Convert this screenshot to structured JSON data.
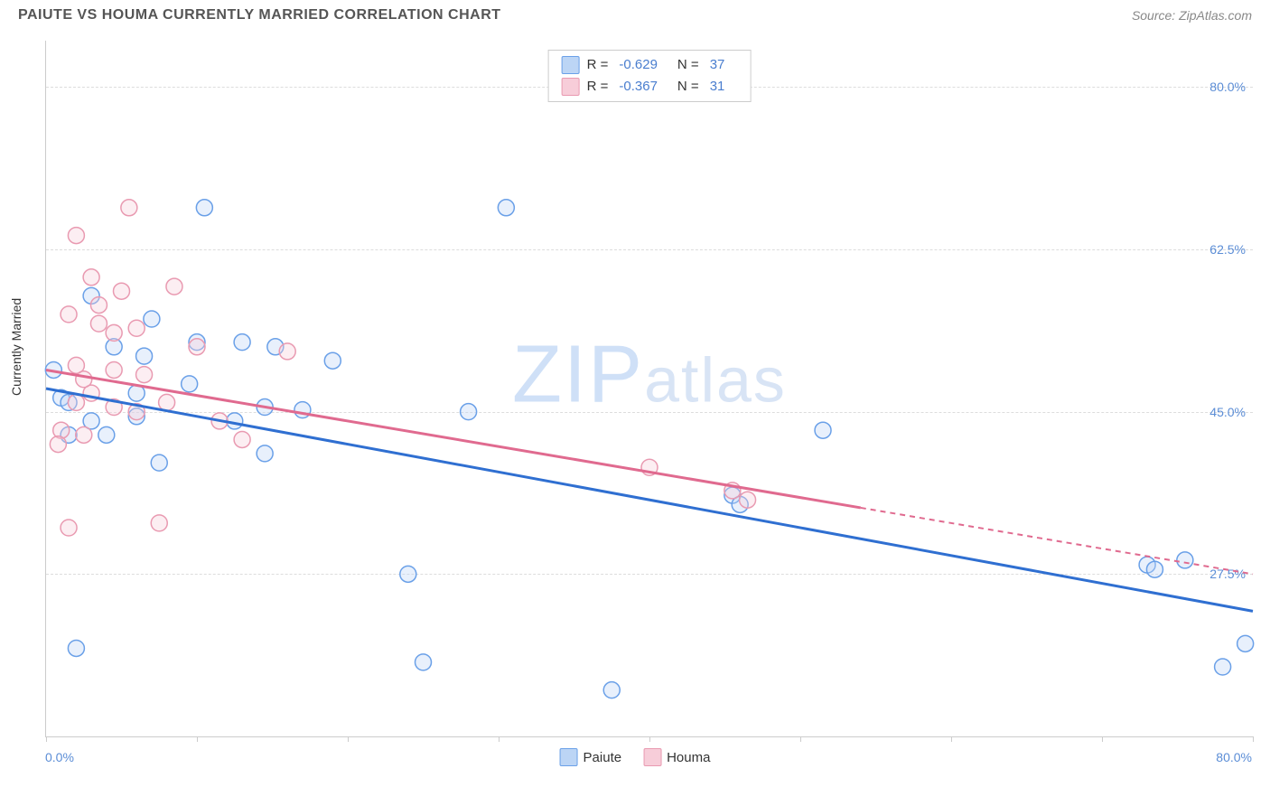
{
  "title": "PAIUTE VS HOUMA CURRENTLY MARRIED CORRELATION CHART",
  "source": "Source: ZipAtlas.com",
  "y_axis_title": "Currently Married",
  "watermark_zip": "ZIP",
  "watermark_atlas": "atlas",
  "chart": {
    "type": "scatter",
    "xlim": [
      0,
      80
    ],
    "ylim": [
      10,
      85
    ],
    "x_tick_positions": [
      0,
      10,
      20,
      30,
      40,
      50,
      60,
      70,
      80
    ],
    "x_label_min": "0.0%",
    "x_label_max": "80.0%",
    "y_ticks": [
      {
        "v": 27.5,
        "label": "27.5%"
      },
      {
        "v": 45.0,
        "label": "45.0%"
      },
      {
        "v": 62.5,
        "label": "62.5%"
      },
      {
        "v": 80.0,
        "label": "80.0%"
      }
    ],
    "background_color": "#ffffff",
    "grid_color": "#dddddd",
    "marker_radius": 9,
    "marker_fill_opacity": 0.35,
    "marker_stroke_width": 1.5,
    "trend_line_width": 3,
    "series": [
      {
        "name": "Paiute",
        "color_stroke": "#6aa0e8",
        "color_fill": "#bcd5f5",
        "trend_color": "#2f6fd1",
        "trend": {
          "x1": 0,
          "y1": 47.5,
          "x2": 80,
          "y2": 23.5,
          "solid_until_x": 80
        },
        "points": [
          [
            10.5,
            67.0
          ],
          [
            30.5,
            67.0
          ],
          [
            3.0,
            57.5
          ],
          [
            6.5,
            51.0
          ],
          [
            0.5,
            49.5
          ],
          [
            1.0,
            46.5
          ],
          [
            1.5,
            46.0
          ],
          [
            10.0,
            52.5
          ],
          [
            6.0,
            44.5
          ],
          [
            3.0,
            44.0
          ],
          [
            4.0,
            42.5
          ],
          [
            7.5,
            39.5
          ],
          [
            12.5,
            44.0
          ],
          [
            14.5,
            40.5
          ],
          [
            14.5,
            45.5
          ],
          [
            15.2,
            52.0
          ],
          [
            13.0,
            52.5
          ],
          [
            19.0,
            50.5
          ],
          [
            17.0,
            45.2
          ],
          [
            9.5,
            48.0
          ],
          [
            1.5,
            42.5
          ],
          [
            2.0,
            19.5
          ],
          [
            24.0,
            27.5
          ],
          [
            25.0,
            18.0
          ],
          [
            37.5,
            15.0
          ],
          [
            45.5,
            36.0
          ],
          [
            46.0,
            35.0
          ],
          [
            28.0,
            45.0
          ],
          [
            51.5,
            43.0
          ],
          [
            73.0,
            28.5
          ],
          [
            73.5,
            28.0
          ],
          [
            75.5,
            29.0
          ],
          [
            78.0,
            17.5
          ],
          [
            79.5,
            20.0
          ],
          [
            7.0,
            55.0
          ],
          [
            4.5,
            52.0
          ],
          [
            6.0,
            47.0
          ]
        ]
      },
      {
        "name": "Houma",
        "color_stroke": "#e99ab1",
        "color_fill": "#f7cdd9",
        "trend_color": "#e06a8f",
        "trend": {
          "x1": 0,
          "y1": 49.5,
          "x2": 80,
          "y2": 27.5,
          "solid_until_x": 54
        },
        "points": [
          [
            2.0,
            64.0
          ],
          [
            5.5,
            67.0
          ],
          [
            3.0,
            59.5
          ],
          [
            5.0,
            58.0
          ],
          [
            8.5,
            58.5
          ],
          [
            1.5,
            55.5
          ],
          [
            3.5,
            54.5
          ],
          [
            4.5,
            53.5
          ],
          [
            2.0,
            50.0
          ],
          [
            4.5,
            49.5
          ],
          [
            6.5,
            49.0
          ],
          [
            3.0,
            47.0
          ],
          [
            2.0,
            46.0
          ],
          [
            4.5,
            45.5
          ],
          [
            6.0,
            45.0
          ],
          [
            8.0,
            46.0
          ],
          [
            1.0,
            43.0
          ],
          [
            2.5,
            42.5
          ],
          [
            0.8,
            41.5
          ],
          [
            1.5,
            32.5
          ],
          [
            7.5,
            33.0
          ],
          [
            10.0,
            52.0
          ],
          [
            16.0,
            51.5
          ],
          [
            11.5,
            44.0
          ],
          [
            13.0,
            42.0
          ],
          [
            40.0,
            39.0
          ],
          [
            45.5,
            36.5
          ],
          [
            46.5,
            35.5
          ],
          [
            3.5,
            56.5
          ],
          [
            6.0,
            54.0
          ],
          [
            2.5,
            48.5
          ]
        ]
      }
    ]
  },
  "stats": [
    {
      "swatch_fill": "#bcd5f5",
      "swatch_stroke": "#6aa0e8",
      "r_label": "R =",
      "r_value": "-0.629",
      "n_label": "N =",
      "n_value": "37"
    },
    {
      "swatch_fill": "#f7cdd9",
      "swatch_stroke": "#e99ab1",
      "r_label": "R =",
      "r_value": "-0.367",
      "n_label": "N =",
      "n_value": "31"
    }
  ],
  "legend": [
    {
      "swatch_fill": "#bcd5f5",
      "swatch_stroke": "#6aa0e8",
      "label": "Paiute"
    },
    {
      "swatch_fill": "#f7cdd9",
      "swatch_stroke": "#e99ab1",
      "label": "Houma"
    }
  ]
}
